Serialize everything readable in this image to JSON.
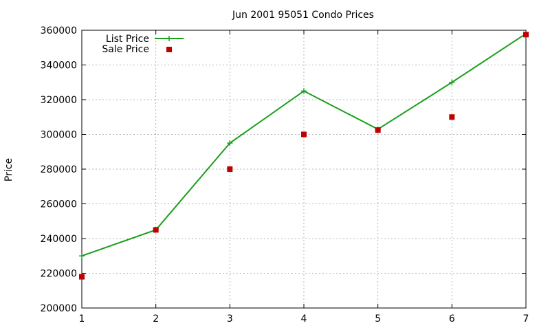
{
  "chart_data": {
    "type": "line",
    "title": "Jun 2001 95051 Condo Prices",
    "xlabel": "",
    "ylabel": "Price",
    "x": [
      1,
      2,
      3,
      4,
      5,
      6,
      7
    ],
    "xlim": [
      1,
      7
    ],
    "ylim": [
      200000,
      360000
    ],
    "xticks": [
      "1",
      "2",
      "3",
      "4",
      "5",
      "6",
      "7"
    ],
    "yticks": [
      "200000",
      "220000",
      "240000",
      "260000",
      "280000",
      "300000",
      "320000",
      "340000",
      "360000"
    ],
    "grid": true,
    "legend_position": "top-left",
    "series": [
      {
        "name": "List Price",
        "style": "line-with-plus-markers",
        "color": "#1a9f1a",
        "values": [
          230000,
          245000,
          295000,
          325000,
          303000,
          330000,
          358000
        ]
      },
      {
        "name": "Sale Price",
        "style": "square-markers",
        "color": "#c00000",
        "values": [
          218000,
          245000,
          280000,
          300000,
          302500,
          310000,
          357500
        ]
      }
    ]
  }
}
